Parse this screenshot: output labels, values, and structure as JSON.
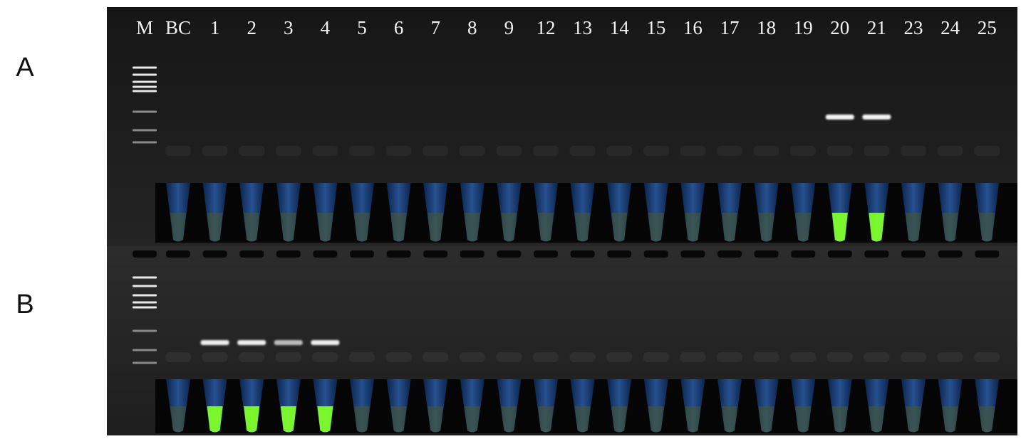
{
  "panels": [
    {
      "label": "A"
    },
    {
      "label": "B"
    }
  ],
  "lanes": [
    "M",
    "BC",
    "1",
    "2",
    "3",
    "4",
    "5",
    "6",
    "7",
    "8",
    "9",
    "12",
    "13",
    "14",
    "15",
    "16",
    "17",
    "18",
    "19",
    "20",
    "21",
    "23",
    "24",
    "25"
  ]
}
